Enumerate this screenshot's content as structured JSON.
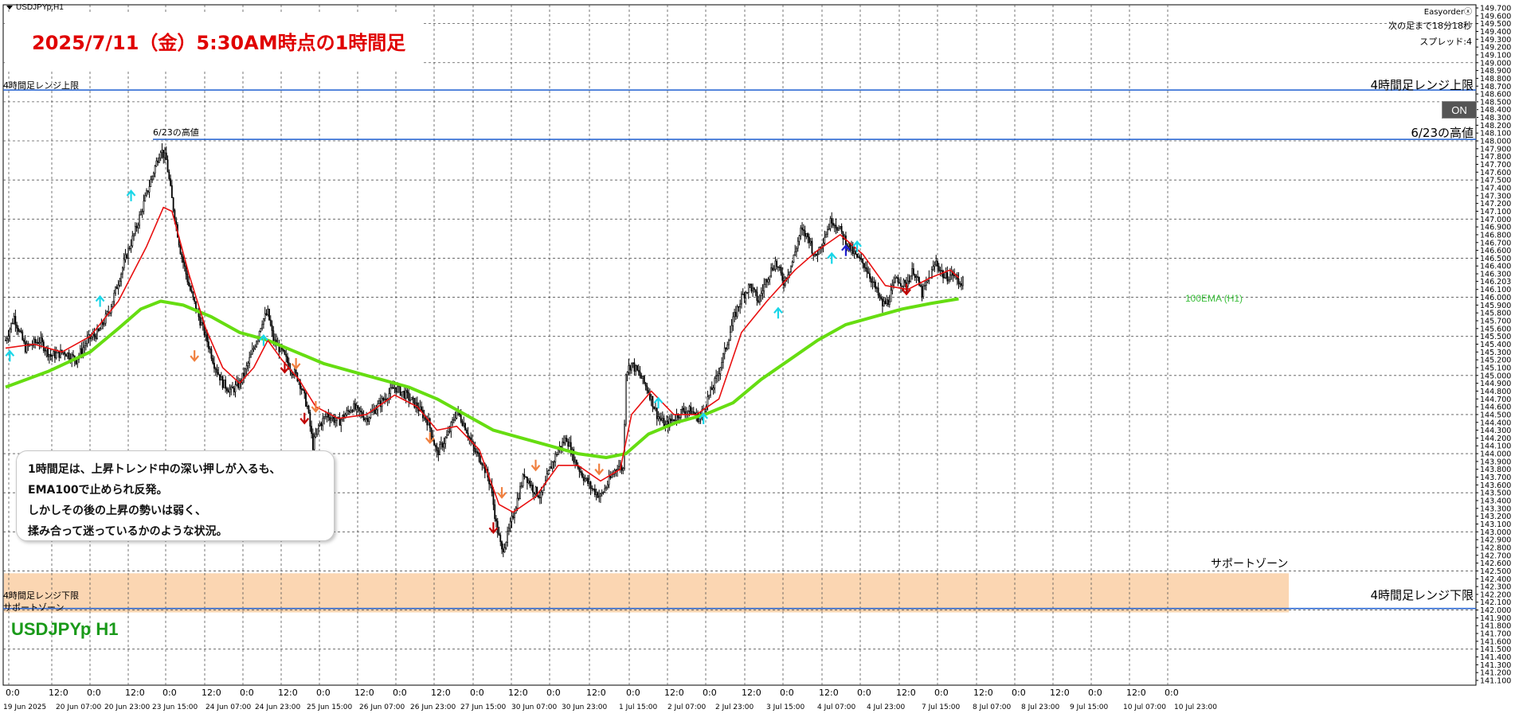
{
  "window": {
    "symbol_tag": "USDJPYp,H1",
    "symbol_big": "USDJPYp H1"
  },
  "title": "2025/7/11（金）5:30AM時点の1時間足",
  "info": {
    "easyorder": "Easyorderⓧ",
    "next_bar": "次の足まで18分18秒",
    "spread": "スプレッド:4",
    "on_button": "ON"
  },
  "levels": {
    "range_upper_left": "4時間足レンジ上限",
    "range_upper_right": "4時間足レンジ上限",
    "high_623_left": "6/23の高値",
    "high_623_right": "6/23の高値",
    "range_lower_left": "4時間足レンジ下限",
    "range_lower_right": "4時間足レンジ下限",
    "support_left": "サポートゾーン",
    "support_right": "サポートゾーン",
    "ema_label": "100EMA (H1)"
  },
  "note": {
    "lines": [
      "1時間足は、上昇トレンド中の深い押しが入るも、",
      "EMA100で止められ反発。",
      "しかしその後の上昇の勢いは弱く、",
      "揉み合って迷っているかのような状況。"
    ]
  },
  "colors": {
    "range_line": "#1f5fd0",
    "ema100": "#66dd11",
    "ema_short": "#e81010",
    "support_zone": "#fbd6b2",
    "candle": "#000000",
    "arrow_up": "#19d6e8",
    "arrow_down_dark": "#c00000",
    "arrow_down_light": "#f08040",
    "arrow_blue": "#2020d0"
  },
  "chart_data": {
    "type": "candlestick",
    "y_axis": {
      "min": 141.1,
      "max": 149.7,
      "tick_labels": [
        "149.700",
        "149.600",
        "149.500",
        "149.400",
        "149.300",
        "149.200",
        "149.100",
        "149.000",
        "148.900",
        "148.800",
        "148.700",
        "148.600",
        "148.500",
        "148.400",
        "148.300",
        "148.200",
        "148.100",
        "148.000",
        "147.900",
        "147.800",
        "147.700",
        "147.600",
        "147.500",
        "147.400",
        "147.300",
        "147.200",
        "147.100",
        "147.000",
        "146.900",
        "146.800",
        "146.700",
        "146.600",
        "146.500",
        "146.400",
        "146.300",
        "146.203",
        "146.100",
        "146.000",
        "145.900",
        "145.800",
        "145.700",
        "145.600",
        "145.500",
        "145.400",
        "145.300",
        "145.200",
        "145.100",
        "145.000",
        "144.900",
        "144.800",
        "144.700",
        "144.600",
        "144.500",
        "144.400",
        "144.300",
        "144.200",
        "144.100",
        "144.000",
        "143.900",
        "143.800",
        "143.700",
        "143.600",
        "143.500",
        "143.400",
        "143.300",
        "143.200",
        "143.100",
        "143.000",
        "142.900",
        "142.800",
        "142.700",
        "142.600",
        "142.500",
        "142.400",
        "142.300",
        "142.200",
        "142.100",
        "142.000",
        "141.900",
        "141.800",
        "141.700",
        "141.600",
        "141.500",
        "141.400",
        "141.300",
        "141.200",
        "141.100"
      ]
    },
    "x_hour_labels": [
      "0:0",
      "12:0",
      "0:0",
      "12:0",
      "0:0",
      "12:0",
      "0:0",
      "12:0",
      "0:0",
      "12:0",
      "0:0",
      "12:0",
      "0:0",
      "12:0",
      "0:0",
      "12:0",
      "0:0",
      "12:0",
      "0:0",
      "12:0",
      "0:0",
      "12:0",
      "0:0",
      "12:0",
      "0:0",
      "12:0",
      "0:0",
      "12:0",
      "0:0",
      "12:0",
      "0:0"
    ],
    "x_date_labels": [
      "19 Jun 2025",
      "20 Jun 07:00",
      "20 Jun 23:00",
      "23 Jun 15:00",
      "24 Jun 07:00",
      "24 Jun 23:00",
      "25 Jun 15:00",
      "26 Jun 07:00",
      "26 Jun 23:00",
      "27 Jun 15:00",
      "30 Jun 07:00",
      "30 Jun 23:00",
      "1 Jul 15:00",
      "2 Jul 07:00",
      "2 Jul 23:00",
      "3 Jul 15:00",
      "4 Jul 07:00",
      "4 Jul 23:00",
      "7 Jul 15:00",
      "8 Jul 07:00",
      "8 Jul 23:00",
      "9 Jul 15:00",
      "10 Jul 07:00",
      "10 Jul 23:00"
    ],
    "levels": {
      "range_upper": 148.65,
      "high_623": 148.02,
      "range_lower": 142.02,
      "support_zone": [
        141.97,
        142.47
      ]
    },
    "price_path": [
      [
        0,
        145.45
      ],
      [
        6,
        145.75
      ],
      [
        14,
        145.35
      ],
      [
        24,
        145.45
      ],
      [
        32,
        145.25
      ],
      [
        42,
        145.3
      ],
      [
        50,
        145.2
      ],
      [
        58,
        145.45
      ],
      [
        66,
        145.55
      ],
      [
        74,
        145.85
      ],
      [
        80,
        146.2
      ],
      [
        86,
        146.55
      ],
      [
        92,
        146.85
      ],
      [
        98,
        147.2
      ],
      [
        104,
        147.55
      ],
      [
        110,
        147.9
      ],
      [
        114,
        147.75
      ],
      [
        118,
        147.25
      ],
      [
        124,
        146.6
      ],
      [
        130,
        146.15
      ],
      [
        136,
        145.8
      ],
      [
        142,
        145.5
      ],
      [
        148,
        145.15
      ],
      [
        154,
        144.9
      ],
      [
        160,
        144.8
      ],
      [
        166,
        144.9
      ],
      [
        170,
        145.05
      ],
      [
        176,
        145.35
      ],
      [
        182,
        145.7
      ],
      [
        186,
        145.8
      ],
      [
        190,
        145.45
      ],
      [
        196,
        145.3
      ],
      [
        202,
        145.1
      ],
      [
        208,
        144.95
      ],
      [
        214,
        144.6
      ],
      [
        218,
        144.1
      ],
      [
        222,
        144.35
      ],
      [
        228,
        144.5
      ],
      [
        236,
        144.4
      ],
      [
        246,
        144.6
      ],
      [
        256,
        144.45
      ],
      [
        266,
        144.65
      ],
      [
        276,
        144.85
      ],
      [
        284,
        144.75
      ],
      [
        292,
        144.6
      ],
      [
        300,
        144.4
      ],
      [
        306,
        144.0
      ],
      [
        314,
        144.25
      ],
      [
        320,
        144.55
      ],
      [
        326,
        144.35
      ],
      [
        332,
        144.05
      ],
      [
        338,
        143.9
      ],
      [
        344,
        143.6
      ],
      [
        348,
        143.1
      ],
      [
        352,
        142.75
      ],
      [
        356,
        142.95
      ],
      [
        362,
        143.35
      ],
      [
        368,
        143.75
      ],
      [
        374,
        143.55
      ],
      [
        380,
        143.45
      ],
      [
        386,
        143.8
      ],
      [
        392,
        144.05
      ],
      [
        398,
        144.2
      ],
      [
        404,
        143.9
      ],
      [
        410,
        143.7
      ],
      [
        416,
        143.55
      ],
      [
        422,
        143.45
      ],
      [
        428,
        143.65
      ],
      [
        434,
        143.85
      ],
      [
        438,
        143.8
      ],
      [
        440,
        145.05
      ],
      [
        444,
        145.15
      ],
      [
        450,
        145.0
      ],
      [
        456,
        144.8
      ],
      [
        462,
        144.5
      ],
      [
        468,
        144.35
      ],
      [
        474,
        144.45
      ],
      [
        480,
        144.55
      ],
      [
        486,
        144.55
      ],
      [
        492,
        144.45
      ],
      [
        498,
        144.7
      ],
      [
        504,
        144.95
      ],
      [
        510,
        145.3
      ],
      [
        516,
        145.7
      ],
      [
        522,
        146.0
      ],
      [
        528,
        146.15
      ],
      [
        534,
        145.95
      ],
      [
        540,
        146.25
      ],
      [
        546,
        146.45
      ],
      [
        552,
        146.2
      ],
      [
        558,
        146.45
      ],
      [
        564,
        146.85
      ],
      [
        570,
        146.75
      ],
      [
        574,
        146.5
      ],
      [
        580,
        146.75
      ],
      [
        586,
        147.0
      ],
      [
        592,
        146.85
      ],
      [
        598,
        146.65
      ],
      [
        604,
        146.5
      ],
      [
        610,
        146.4
      ],
      [
        616,
        146.15
      ],
      [
        622,
        145.9
      ],
      [
        626,
        145.95
      ],
      [
        632,
        146.25
      ],
      [
        638,
        146.15
      ],
      [
        644,
        146.35
      ],
      [
        650,
        146.05
      ],
      [
        654,
        146.2
      ],
      [
        660,
        146.45
      ],
      [
        666,
        146.25
      ],
      [
        672,
        146.3
      ],
      [
        676,
        146.2
      ]
    ],
    "ema_short_path": [
      [
        0,
        145.35
      ],
      [
        20,
        145.4
      ],
      [
        40,
        145.3
      ],
      [
        60,
        145.5
      ],
      [
        80,
        145.95
      ],
      [
        100,
        146.65
      ],
      [
        112,
        147.15
      ],
      [
        118,
        147.1
      ],
      [
        130,
        146.3
      ],
      [
        142,
        145.6
      ],
      [
        154,
        145.1
      ],
      [
        166,
        144.9
      ],
      [
        176,
        145.1
      ],
      [
        186,
        145.45
      ],
      [
        196,
        145.2
      ],
      [
        208,
        144.95
      ],
      [
        220,
        144.6
      ],
      [
        236,
        144.45
      ],
      [
        256,
        144.5
      ],
      [
        276,
        144.75
      ],
      [
        292,
        144.6
      ],
      [
        306,
        144.3
      ],
      [
        320,
        144.35
      ],
      [
        336,
        144.05
      ],
      [
        350,
        143.35
      ],
      [
        360,
        143.25
      ],
      [
        376,
        143.45
      ],
      [
        392,
        143.85
      ],
      [
        406,
        143.85
      ],
      [
        422,
        143.65
      ],
      [
        436,
        143.8
      ],
      [
        444,
        144.5
      ],
      [
        458,
        144.8
      ],
      [
        474,
        144.5
      ],
      [
        490,
        144.5
      ],
      [
        506,
        144.7
      ],
      [
        522,
        145.55
      ],
      [
        540,
        145.95
      ],
      [
        560,
        146.35
      ],
      [
        576,
        146.6
      ],
      [
        592,
        146.8
      ],
      [
        608,
        146.55
      ],
      [
        624,
        146.15
      ],
      [
        640,
        146.1
      ],
      [
        656,
        146.25
      ],
      [
        670,
        146.35
      ],
      [
        676,
        146.25
      ]
    ],
    "ema100_path": [
      [
        0,
        144.85
      ],
      [
        30,
        145.05
      ],
      [
        60,
        145.3
      ],
      [
        80,
        145.6
      ],
      [
        96,
        145.85
      ],
      [
        110,
        145.95
      ],
      [
        126,
        145.9
      ],
      [
        146,
        145.75
      ],
      [
        166,
        145.55
      ],
      [
        186,
        145.45
      ],
      [
        206,
        145.3
      ],
      [
        226,
        145.15
      ],
      [
        246,
        145.05
      ],
      [
        266,
        144.95
      ],
      [
        286,
        144.85
      ],
      [
        306,
        144.7
      ],
      [
        326,
        144.5
      ],
      [
        346,
        144.3
      ],
      [
        366,
        144.2
      ],
      [
        386,
        144.1
      ],
      [
        406,
        144.0
      ],
      [
        426,
        143.95
      ],
      [
        440,
        144.0
      ],
      [
        456,
        144.25
      ],
      [
        476,
        144.4
      ],
      [
        496,
        144.5
      ],
      [
        516,
        144.65
      ],
      [
        536,
        144.95
      ],
      [
        556,
        145.2
      ],
      [
        576,
        145.45
      ],
      [
        596,
        145.65
      ],
      [
        616,
        145.75
      ],
      [
        636,
        145.85
      ],
      [
        656,
        145.92
      ],
      [
        676,
        145.98
      ]
    ],
    "signal_arrows": [
      {
        "i": 3,
        "p": 145.3,
        "t": "up"
      },
      {
        "i": 67,
        "p": 146.0,
        "t": "up"
      },
      {
        "i": 89,
        "p": 147.35,
        "t": "up"
      },
      {
        "i": 183,
        "p": 145.5,
        "t": "up"
      },
      {
        "i": 463,
        "p": 144.7,
        "t": "up"
      },
      {
        "i": 495,
        "p": 144.5,
        "t": "up"
      },
      {
        "i": 548,
        "p": 145.85,
        "t": "up"
      },
      {
        "i": 586,
        "p": 146.55,
        "t": "up"
      },
      {
        "i": 604,
        "p": 146.7,
        "t": "up"
      },
      {
        "i": 596,
        "p": 146.65,
        "t": "blue"
      },
      {
        "i": 134,
        "p": 145.2,
        "t": "downL"
      },
      {
        "i": 206,
        "p": 145.1,
        "t": "downL"
      },
      {
        "i": 220,
        "p": 144.55,
        "t": "downL"
      },
      {
        "i": 301,
        "p": 144.15,
        "t": "downL"
      },
      {
        "i": 352,
        "p": 143.45,
        "t": "downL"
      },
      {
        "i": 376,
        "p": 143.8,
        "t": "downL"
      },
      {
        "i": 421,
        "p": 143.75,
        "t": "downL"
      },
      {
        "i": 198,
        "p": 145.05,
        "t": "downD"
      },
      {
        "i": 212,
        "p": 144.4,
        "t": "downD"
      },
      {
        "i": 346,
        "p": 143.0,
        "t": "downD"
      },
      {
        "i": 639,
        "p": 146.05,
        "t": "downD"
      }
    ]
  }
}
